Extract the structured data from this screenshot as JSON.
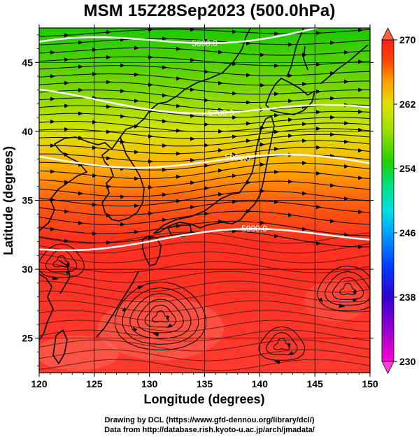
{
  "title": "MSM 15Z28Sep2023 (500.0hPa)",
  "x_axis": {
    "label": "Longitude (degrees)",
    "ticks": [
      "120",
      "125",
      "130",
      "135",
      "140",
      "145",
      "150"
    ],
    "range": [
      120,
      150
    ]
  },
  "y_axis": {
    "label": "Latitude  (degrees)",
    "ticks": [
      "25",
      "30",
      "35",
      "40",
      "45"
    ],
    "range": [
      22.5,
      47.5
    ]
  },
  "colorbar": {
    "ticks": [
      "230",
      "238",
      "246",
      "254",
      "262",
      "270"
    ],
    "range": [
      230,
      270
    ],
    "colors": [
      "#ff00d0",
      "#a000d0",
      "#3000d0",
      "#0040ff",
      "#00a0ff",
      "#00e0e0",
      "#00e080",
      "#20d000",
      "#a0e000",
      "#e0e000",
      "#ffa000",
      "#ff4000",
      "#ff2020"
    ]
  },
  "contours": [
    {
      "label": "5600.0",
      "lat_west": 47.8,
      "lat_east": 48.5
    },
    {
      "label": "5600.0",
      "lat_west": 46.0,
      "lat_east": 47.8
    },
    {
      "label": "5700.0",
      "lat_west": 42.5,
      "lat_east": 41.2
    },
    {
      "label": "5800.0",
      "lat_west": 38.1,
      "lat_east": 37.6
    },
    {
      "label": "5900.0",
      "lat_west": 31.9,
      "lat_east": 32.6
    }
  ],
  "credits": {
    "line1": "Drawing by DCL (https://www.gfd-dennou.org/library/dcl/)",
    "line2": "Data from http://database.rish.kyoto-u.ac.jp/arch/jmadata/"
  }
}
